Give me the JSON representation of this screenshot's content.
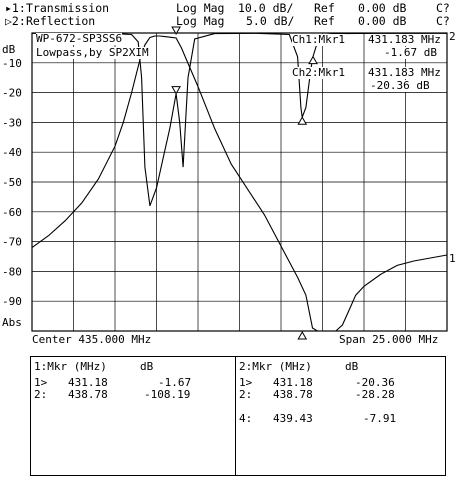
{
  "header": {
    "ch1_prefix": "▸1:",
    "ch1_name": "Transmission",
    "ch1_format": "Log Mag",
    "ch1_scale": "10.0 dB/",
    "ch1_ref_label": "Ref",
    "ch1_ref": "0.00 dB",
    "ch1_flag": "C?",
    "ch2_prefix": "▷2:",
    "ch2_name": "Reflection",
    "ch2_format": "Log Mag",
    "ch2_scale": "5.0 dB/",
    "ch2_ref_label": "Ref",
    "ch2_ref": "0.00 dB",
    "ch2_flag": "C?"
  },
  "plot_labels": {
    "y_unit_top": "dB",
    "y_unit_bottom": "Abs",
    "title_line1": "WP-672-SP3SS6",
    "title_line2": "Lowpass,by SP2XIM",
    "center": "Center 435.000 MHz",
    "span": "Span 25.000 MHz",
    "ch1_marker_title": "Ch1:Mkr1",
    "ch1_marker_freq": "431.183 MHz",
    "ch1_marker_val": "-1.67 dB",
    "ch2_marker_title": "Ch2:Mkr1",
    "ch2_marker_freq": "431.183 MHz",
    "ch2_marker_val": "-20.36 dB",
    "trace1_end_label": "1",
    "trace2_end_label": "2"
  },
  "chart_data": {
    "type": "line",
    "xlabel": "",
    "ylabel": "dB",
    "xlim": [
      422.5,
      447.5
    ],
    "ylim": [
      -100,
      0
    ],
    "yticks": [
      -10,
      -20,
      -30,
      -40,
      -50,
      -60,
      -70,
      -80,
      -90
    ],
    "grid": true,
    "series": [
      {
        "name": "Transmission",
        "x": [
          422.5,
          423.5,
          424.5,
          425.5,
          426.5,
          427.5,
          428.0,
          428.5,
          429.0,
          429.3,
          429.6,
          429.9,
          430.2,
          430.5,
          430.8,
          431.18,
          431.5,
          432.5,
          433.5,
          434.5,
          436.5,
          438.5,
          439.0,
          439.4,
          439.7,
          440.0,
          440.4,
          440.8,
          441.2,
          441.6,
          442.0,
          442.5,
          443.5,
          444.5,
          445.5,
          446.5,
          447.5
        ],
        "y": [
          -72,
          -68,
          -63,
          -57,
          -49,
          -38,
          -30,
          -20,
          -9,
          -4,
          -1.5,
          -1,
          -1,
          -1.2,
          -1.4,
          -1.67,
          -5,
          -18,
          -32,
          -44,
          -61,
          -82,
          -88,
          -99,
          -100,
          -100,
          -100,
          -100,
          -98,
          -93,
          -88,
          -85,
          -81,
          -78,
          -76.5,
          -75.5,
          -74.5
        ]
      },
      {
        "name": "Reflection",
        "x": [
          422.5,
          425.0,
          427.5,
          428.5,
          428.9,
          429.1,
          429.3,
          429.6,
          430.0,
          430.4,
          430.8,
          431.18,
          431.4,
          431.6,
          431.9,
          432.3,
          433.5,
          436.0,
          438.0,
          438.5,
          438.7,
          438.78,
          439.0,
          439.3,
          439.43,
          439.7,
          440.2,
          441.0,
          443.5,
          447.5
        ],
        "y": [
          -0.1,
          -0.1,
          -0.2,
          -0.5,
          -3,
          -15,
          -45,
          -58,
          -52,
          -42,
          -32,
          -20.36,
          -30,
          -45,
          -15,
          -2,
          -0.2,
          -0.1,
          -0.5,
          -8,
          -25,
          -28.28,
          -25,
          -12,
          -7.91,
          -3,
          -0.5,
          -0.2,
          -0.1,
          -0.1
        ]
      }
    ],
    "markers": {
      "ch1": [
        {
          "id": "1>",
          "freq_mhz": "431.18",
          "value_db": "-1.67"
        },
        {
          "id": "2:",
          "freq_mhz": "438.78",
          "value_db": "-108.19"
        }
      ],
      "ch2": [
        {
          "id": "1>",
          "freq_mhz": "431.18",
          "value_db": "-20.36"
        },
        {
          "id": "2:",
          "freq_mhz": "438.78",
          "value_db": "-28.28"
        },
        {
          "id": "4:",
          "freq_mhz": "439.43",
          "value_db": "-7.91"
        }
      ]
    }
  },
  "tables": {
    "ch1_header": "1:Mkr (MHz)     dB",
    "ch2_header": "2:Mkr (MHz)     dB"
  }
}
